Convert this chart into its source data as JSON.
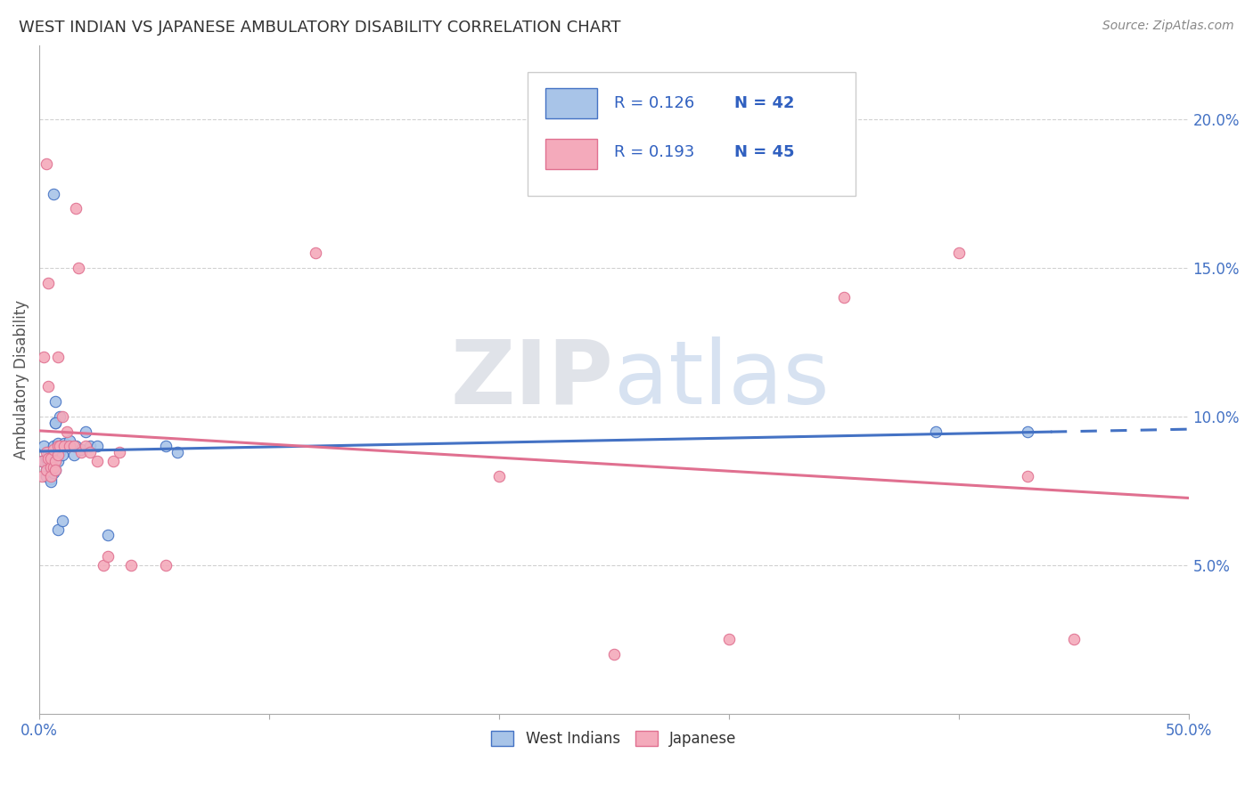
{
  "title": "WEST INDIAN VS JAPANESE AMBULATORY DISABILITY CORRELATION CHART",
  "source": "Source: ZipAtlas.com",
  "ylabel": "Ambulatory Disability",
  "west_indian_R": "0.126",
  "west_indian_N": "42",
  "japanese_R": "0.193",
  "japanese_N": "45",
  "west_indian_color": "#a8c4e8",
  "japanese_color": "#f4aabb",
  "west_indian_line_color": "#4472c4",
  "japanese_line_color": "#e07090",
  "legend_text_color": "#3060c0",
  "watermark_zip_color": "#d0d8e8",
  "watermark_atlas_color": "#b8cce8",
  "west_indian_x": [
    0.001,
    0.002,
    0.002,
    0.003,
    0.003,
    0.003,
    0.004,
    0.004,
    0.005,
    0.005,
    0.005,
    0.005,
    0.006,
    0.006,
    0.006,
    0.006,
    0.007,
    0.007,
    0.007,
    0.008,
    0.008,
    0.009,
    0.009,
    0.01,
    0.011,
    0.012,
    0.013,
    0.015,
    0.016,
    0.018,
    0.02,
    0.022,
    0.025,
    0.03,
    0.055,
    0.06,
    0.39,
    0.43,
    0.006,
    0.007,
    0.008,
    0.01
  ],
  "west_indian_y": [
    0.085,
    0.09,
    0.085,
    0.082,
    0.08,
    0.086,
    0.084,
    0.088,
    0.087,
    0.083,
    0.079,
    0.078,
    0.09,
    0.087,
    0.083,
    0.081,
    0.105,
    0.098,
    0.082,
    0.091,
    0.085,
    0.1,
    0.088,
    0.087,
    0.091,
    0.09,
    0.092,
    0.087,
    0.09,
    0.089,
    0.095,
    0.09,
    0.09,
    0.06,
    0.09,
    0.088,
    0.095,
    0.095,
    0.175,
    0.098,
    0.062,
    0.065
  ],
  "japanese_x": [
    0.001,
    0.001,
    0.002,
    0.003,
    0.003,
    0.004,
    0.004,
    0.005,
    0.005,
    0.005,
    0.006,
    0.006,
    0.007,
    0.007,
    0.008,
    0.008,
    0.009,
    0.01,
    0.011,
    0.012,
    0.013,
    0.015,
    0.016,
    0.017,
    0.018,
    0.02,
    0.022,
    0.025,
    0.028,
    0.03,
    0.032,
    0.035,
    0.04,
    0.055,
    0.12,
    0.2,
    0.25,
    0.3,
    0.35,
    0.4,
    0.43,
    0.45,
    0.003,
    0.004,
    0.008
  ],
  "japanese_y": [
    0.08,
    0.085,
    0.12,
    0.088,
    0.082,
    0.086,
    0.11,
    0.083,
    0.08,
    0.086,
    0.089,
    0.083,
    0.085,
    0.082,
    0.09,
    0.087,
    0.09,
    0.1,
    0.09,
    0.095,
    0.09,
    0.09,
    0.17,
    0.15,
    0.088,
    0.09,
    0.088,
    0.085,
    0.05,
    0.053,
    0.085,
    0.088,
    0.05,
    0.05,
    0.155,
    0.08,
    0.02,
    0.025,
    0.14,
    0.155,
    0.08,
    0.025,
    0.185,
    0.145,
    0.12
  ],
  "xlim": [
    0.0,
    0.5
  ],
  "ylim": [
    0.0,
    0.225
  ],
  "yticks": [
    0.05,
    0.1,
    0.15,
    0.2
  ],
  "ytick_labels": [
    "5.0%",
    "10.0%",
    "15.0%",
    "20.0%"
  ],
  "background_color": "#ffffff",
  "grid_color": "#cccccc"
}
